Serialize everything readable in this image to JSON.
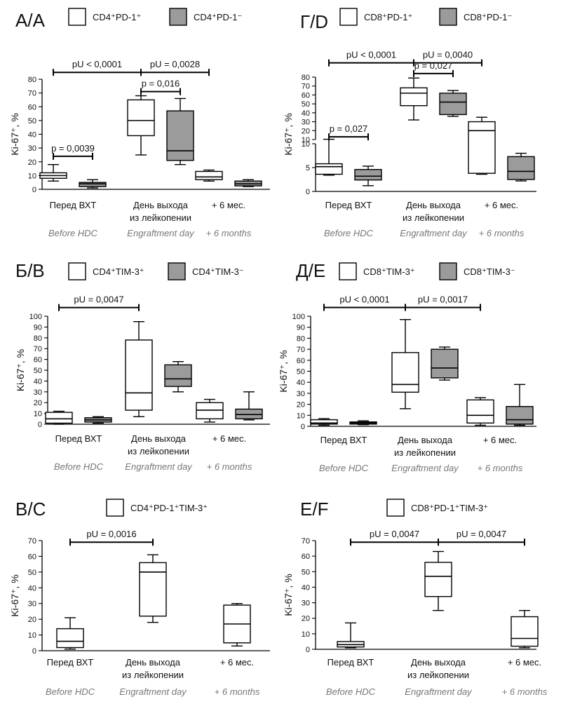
{
  "chart_data": [
    {
      "type": "boxplot",
      "panel_label": "А/A",
      "ylabel": "Ki-67⁺, %",
      "yticks": [
        0,
        10,
        20,
        30,
        40,
        50,
        60,
        70,
        80
      ],
      "ylim": [
        0,
        80
      ],
      "legend": [
        {
          "label": "CD4⁺PD-1⁺",
          "fill": "#ffffff"
        },
        {
          "label": "CD4⁺PD-1⁻",
          "fill": "#9b9b9b"
        }
      ],
      "categories": [
        {
          "ru": "Перед ВХТ",
          "en": "Before HDC"
        },
        {
          "ru": "День выхода\nиз лейкопении",
          "en": "Engraftment day"
        },
        {
          "ru": "+ 6 мес.",
          "en": "+ 6 months"
        }
      ],
      "boxes": [
        {
          "group": 0,
          "series": 0,
          "min": 6,
          "q1": 8,
          "median": 10,
          "q3": 12,
          "max": 18
        },
        {
          "group": 0,
          "series": 1,
          "min": 1,
          "q1": 2,
          "median": 4,
          "q3": 5,
          "max": 7
        },
        {
          "group": 1,
          "series": 0,
          "min": 25,
          "q1": 39,
          "median": 50,
          "q3": 65,
          "max": 68
        },
        {
          "group": 1,
          "series": 1,
          "min": 18,
          "q1": 21,
          "median": 28,
          "q3": 57,
          "max": 66
        },
        {
          "group": 2,
          "series": 0,
          "min": 6,
          "q1": 7,
          "median": 9,
          "q3": 13,
          "max": 14
        },
        {
          "group": 2,
          "series": 1,
          "min": 2,
          "q1": 2.5,
          "median": 4,
          "q3": 6,
          "max": 7
        }
      ],
      "annotations": [
        {
          "text": "p = 0,0039",
          "from": [
            0,
            0
          ],
          "to": [
            0,
            1
          ],
          "y": 24
        },
        {
          "text": "pU < 0,0001",
          "from": [
            0,
            0
          ],
          "to": [
            1,
            0
          ],
          "y": 85
        },
        {
          "text": "pU = 0,0028",
          "from": [
            1,
            0
          ],
          "to": [
            2,
            0
          ],
          "y": 85
        },
        {
          "text": "p = 0,016",
          "from": [
            1,
            0
          ],
          "to": [
            1,
            1
          ],
          "y": 71
        }
      ]
    },
    {
      "type": "boxplot",
      "panel_label": "Г/D",
      "ylabel": "Ki-67⁺, %",
      "broken_axis": true,
      "lower_yticks": [
        0,
        5,
        10
      ],
      "upper_yticks": [
        10,
        20,
        30,
        40,
        50,
        60,
        70,
        80
      ],
      "legend": [
        {
          "label": "CD8⁺PD-1⁺",
          "fill": "#ffffff"
        },
        {
          "label": "CD8⁺PD-1⁻",
          "fill": "#9b9b9b"
        }
      ],
      "categories": [
        {
          "ru": "Перед ВХТ",
          "en": "Before HDC"
        },
        {
          "ru": "День выхода\nиз лейкопении",
          "en": "Engraftment day"
        },
        {
          "ru": "+ 6 мес.",
          "en": "+ 6 months"
        }
      ],
      "boxes": [
        {
          "group": 0,
          "series": 0,
          "min": 3.4,
          "q1": 3.6,
          "median": 5.2,
          "q3": 5.8,
          "max": 10.3
        },
        {
          "group": 0,
          "series": 1,
          "min": 1.2,
          "q1": 2.4,
          "median": 3.2,
          "q3": 4.6,
          "max": 5.3
        },
        {
          "group": 1,
          "series": 0,
          "min": 32,
          "q1": 48,
          "median": 62,
          "q3": 68,
          "max": 79
        },
        {
          "group": 1,
          "series": 1,
          "min": 36,
          "q1": 38,
          "median": 52,
          "q3": 62,
          "max": 65
        },
        {
          "group": 2,
          "series": 0,
          "min": 3.6,
          "q1": 3.8,
          "median": 20,
          "q3": 30,
          "max": 35
        },
        {
          "group": 2,
          "series": 1,
          "min": 2.2,
          "q1": 2.5,
          "median": 4.2,
          "q3": 7.3,
          "max": 8
        }
      ],
      "annotations": [
        {
          "text": "p = 0,027",
          "from": [
            0,
            0
          ],
          "to": [
            0,
            1
          ],
          "y": 13
        },
        {
          "text": "pU < 0,0001",
          "from": [
            0,
            0
          ],
          "to": [
            1,
            0
          ],
          "y": 96
        },
        {
          "text": "pU = 0,0040",
          "from": [
            1,
            0
          ],
          "to": [
            2,
            0
          ],
          "y": 96
        },
        {
          "text": "p = 0,027",
          "from": [
            1,
            0
          ],
          "to": [
            1,
            1
          ],
          "y": 84
        }
      ]
    },
    {
      "type": "boxplot",
      "panel_label": "Б/B",
      "ylabel": "Ki-67⁺, %",
      "yticks": [
        0,
        10,
        20,
        30,
        40,
        50,
        60,
        70,
        80,
        90,
        100
      ],
      "ylim": [
        0,
        100
      ],
      "legend": [
        {
          "label": "CD4⁺TIM-3⁺",
          "fill": "#ffffff"
        },
        {
          "label": "CD4⁺TIM-3⁻",
          "fill": "#9b9b9b"
        }
      ],
      "categories": [
        {
          "ru": "Перед ВХТ",
          "en": "Before HDC"
        },
        {
          "ru": "День выхода\nиз лейкопении",
          "en": "Engraftment day"
        },
        {
          "ru": "+ 6 мес.",
          "en": "+ 6 months"
        }
      ],
      "boxes": [
        {
          "group": 0,
          "series": 0,
          "min": 0,
          "q1": 1,
          "median": 5,
          "q3": 11,
          "max": 12
        },
        {
          "group": 0,
          "series": 1,
          "min": 1,
          "q1": 2,
          "median": 4,
          "q3": 6,
          "max": 7
        },
        {
          "group": 1,
          "series": 0,
          "min": 7,
          "q1": 13,
          "median": 29,
          "q3": 78,
          "max": 95
        },
        {
          "group": 1,
          "series": 1,
          "min": 30,
          "q1": 35,
          "median": 42,
          "q3": 55,
          "max": 58
        },
        {
          "group": 2,
          "series": 0,
          "min": 2,
          "q1": 5,
          "median": 13,
          "q3": 20,
          "max": 23
        },
        {
          "group": 2,
          "series": 1,
          "min": 4,
          "q1": 5,
          "median": 9,
          "q3": 14,
          "max": 30
        }
      ],
      "annotations": [
        {
          "text": "pU = 0,0047",
          "from": [
            0,
            0
          ],
          "to": [
            1,
            0
          ],
          "y": 108
        }
      ]
    },
    {
      "type": "boxplot",
      "panel_label": "Д/E",
      "ylabel": "Ki-67⁺, %",
      "yticks": [
        0,
        10,
        20,
        30,
        40,
        50,
        60,
        70,
        80,
        90,
        100
      ],
      "ylim": [
        0,
        100
      ],
      "legend": [
        {
          "label": "CD8⁺TIM-3⁺",
          "fill": "#ffffff"
        },
        {
          "label": "CD8⁺TIM-3⁻",
          "fill": "#9b9b9b"
        }
      ],
      "categories": [
        {
          "ru": "Перед ВХТ",
          "en": "Before HDC"
        },
        {
          "ru": "День выхода\nиз лейкопении",
          "en": "Engraftment day"
        },
        {
          "ru": "+ 6 мес.",
          "en": "+ 6 months"
        }
      ],
      "boxes": [
        {
          "group": 0,
          "series": 0,
          "min": 1,
          "q1": 2,
          "median": 3,
          "q3": 6,
          "max": 7
        },
        {
          "group": 0,
          "series": 1,
          "min": 1.5,
          "q1": 2,
          "median": 3,
          "q3": 4,
          "max": 5
        },
        {
          "group": 1,
          "series": 0,
          "min": 16,
          "q1": 31,
          "median": 38,
          "q3": 67,
          "max": 97
        },
        {
          "group": 1,
          "series": 1,
          "min": 42,
          "q1": 44,
          "median": 53,
          "q3": 70,
          "max": 72
        },
        {
          "group": 2,
          "series": 0,
          "min": 1,
          "q1": 3,
          "median": 10,
          "q3": 24,
          "max": 26
        },
        {
          "group": 2,
          "series": 1,
          "min": 1,
          "q1": 2,
          "median": 6,
          "q3": 18,
          "max": 38
        }
      ],
      "annotations": [
        {
          "text": "pU < 0,0001",
          "from": [
            0,
            0
          ],
          "to": [
            1,
            0
          ],
          "y": 108
        },
        {
          "text": "pU = 0,0017",
          "from": [
            1,
            0
          ],
          "to": [
            2,
            0
          ],
          "y": 108
        }
      ]
    },
    {
      "type": "boxplot",
      "panel_label": "В/C",
      "ylabel": "Ki-67⁺, %",
      "yticks": [
        0,
        10,
        20,
        30,
        40,
        50,
        60,
        70
      ],
      "ylim": [
        0,
        70
      ],
      "legend": [
        {
          "label": "CD4⁺PD-1⁺TIM-3⁺",
          "fill": "#ffffff"
        }
      ],
      "categories": [
        {
          "ru": "Перед ВХТ",
          "en": "Before HDC"
        },
        {
          "ru": "День выхода\nиз лейкопении",
          "en": "Engraftment day"
        },
        {
          "ru": "+ 6 мес.",
          "en": "+ 6 months"
        }
      ],
      "boxes": [
        {
          "group": 0,
          "series": 0,
          "min": 1,
          "q1": 2,
          "median": 6,
          "q3": 14,
          "max": 21
        },
        {
          "group": 1,
          "series": 0,
          "min": 18,
          "q1": 22,
          "median": 50,
          "q3": 56,
          "max": 61
        },
        {
          "group": 2,
          "series": 0,
          "min": 3,
          "q1": 5,
          "median": 17,
          "q3": 29,
          "max": 30
        }
      ],
      "annotations": [
        {
          "text": "pU = 0,0016",
          "from": [
            0,
            0
          ],
          "to": [
            1,
            0
          ],
          "y": 69
        }
      ]
    },
    {
      "type": "boxplot",
      "panel_label": "Е/F",
      "ylabel": "Ki-67⁺, %",
      "yticks": [
        0,
        10,
        20,
        30,
        40,
        50,
        60,
        70
      ],
      "ylim": [
        0,
        70
      ],
      "legend": [
        {
          "label": "CD8⁺PD-1⁺TIM-3⁺",
          "fill": "#ffffff"
        }
      ],
      "categories": [
        {
          "ru": "Перед ВХТ",
          "en": "Before HDC"
        },
        {
          "ru": "День выхода\nиз лейкопении",
          "en": "Engraftment day"
        },
        {
          "ru": "+ 6 мес.",
          "en": "+ 6 months"
        }
      ],
      "boxes": [
        {
          "group": 0,
          "series": 0,
          "min": 1,
          "q1": 1.5,
          "median": 3,
          "q3": 5,
          "max": 17
        },
        {
          "group": 1,
          "series": 0,
          "min": 25,
          "q1": 34,
          "median": 47,
          "q3": 56,
          "max": 63
        },
        {
          "group": 2,
          "series": 0,
          "min": 1,
          "q1": 2,
          "median": 7,
          "q3": 21,
          "max": 25
        }
      ],
      "annotations": [
        {
          "text": "pU = 0,0047",
          "from": [
            0,
            0
          ],
          "to": [
            1,
            0
          ],
          "y": 69
        },
        {
          "text": "pU = 0,0047",
          "from": [
            1,
            0
          ],
          "to": [
            2,
            0
          ],
          "y": 69
        }
      ]
    }
  ]
}
